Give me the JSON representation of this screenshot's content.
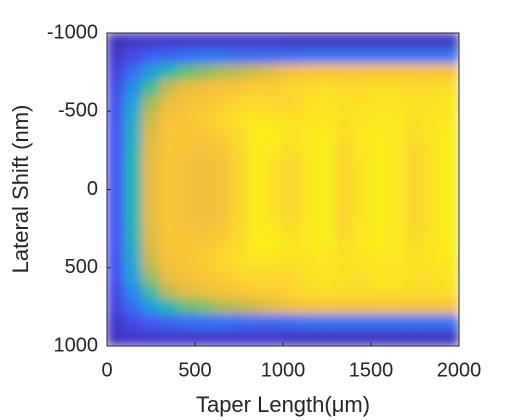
{
  "chart_data": {
    "type": "heatmap",
    "xlabel": "Taper Length(μm)",
    "ylabel": "Lateral Shift (nm)",
    "xlim": [
      0,
      2000
    ],
    "ylim": [
      1000,
      -1000
    ],
    "xticks": [
      0,
      500,
      1000,
      1500,
      2000
    ],
    "yticks": [
      -1000,
      -500,
      0,
      500,
      1000
    ],
    "zlim": [
      0,
      1
    ],
    "colormap": [
      "#3e26a8",
      "#4751f5",
      "#2c7ff5",
      "#17a3db",
      "#21b8b1",
      "#73bf70",
      "#d4ba45",
      "#fbc33b",
      "#f9fa14"
    ],
    "x": [
      50,
      150,
      250,
      350,
      450,
      550,
      650,
      750,
      850,
      950,
      1050,
      1150,
      1250,
      1350,
      1450,
      1550,
      1650,
      1750,
      1850,
      1950
    ],
    "y": [
      -950,
      -850,
      -750,
      -650,
      -550,
      -450,
      -350,
      -250,
      -150,
      -50,
      50,
      150,
      250,
      350,
      450,
      550,
      650,
      750,
      850,
      950
    ],
    "z": [
      [
        0.03,
        0.05,
        0.08,
        0.1,
        0.12,
        0.12,
        0.13,
        0.13,
        0.13,
        0.13,
        0.13,
        0.13,
        0.13,
        0.13,
        0.12,
        0.12,
        0.1,
        0.08,
        0.05,
        0.03
      ],
      [
        0.05,
        0.1,
        0.2,
        0.3,
        0.38,
        0.42,
        0.45,
        0.47,
        0.48,
        0.48,
        0.48,
        0.48,
        0.47,
        0.45,
        0.42,
        0.38,
        0.3,
        0.2,
        0.1,
        0.05
      ],
      [
        0.05,
        0.15,
        0.35,
        0.55,
        0.68,
        0.74,
        0.77,
        0.79,
        0.8,
        0.8,
        0.8,
        0.8,
        0.79,
        0.77,
        0.74,
        0.68,
        0.55,
        0.35,
        0.15,
        0.05
      ],
      [
        0.05,
        0.18,
        0.5,
        0.72,
        0.82,
        0.86,
        0.88,
        0.88,
        0.88,
        0.88,
        0.88,
        0.88,
        0.88,
        0.88,
        0.86,
        0.82,
        0.72,
        0.5,
        0.18,
        0.05
      ],
      [
        0.05,
        0.2,
        0.6,
        0.8,
        0.86,
        0.88,
        0.88,
        0.87,
        0.86,
        0.86,
        0.86,
        0.86,
        0.87,
        0.88,
        0.88,
        0.86,
        0.8,
        0.6,
        0.2,
        0.05
      ],
      [
        0.05,
        0.22,
        0.65,
        0.84,
        0.88,
        0.9,
        0.88,
        0.86,
        0.84,
        0.84,
        0.84,
        0.84,
        0.86,
        0.88,
        0.9,
        0.88,
        0.84,
        0.65,
        0.22,
        0.05
      ],
      [
        0.05,
        0.22,
        0.7,
        0.86,
        0.9,
        0.92,
        0.9,
        0.88,
        0.86,
        0.86,
        0.86,
        0.86,
        0.88,
        0.9,
        0.92,
        0.9,
        0.86,
        0.7,
        0.22,
        0.05
      ],
      [
        0.05,
        0.2,
        0.72,
        0.88,
        0.92,
        0.94,
        0.93,
        0.92,
        0.92,
        0.92,
        0.92,
        0.92,
        0.92,
        0.93,
        0.94,
        0.92,
        0.88,
        0.72,
        0.2,
        0.05
      ],
      [
        0.05,
        0.2,
        0.75,
        0.9,
        0.93,
        0.96,
        0.97,
        0.97,
        0.97,
        0.97,
        0.97,
        0.97,
        0.97,
        0.97,
        0.96,
        0.93,
        0.9,
        0.75,
        0.2,
        0.05
      ],
      [
        0.05,
        0.2,
        0.8,
        0.9,
        0.92,
        0.95,
        0.97,
        0.96,
        0.94,
        0.94,
        0.94,
        0.94,
        0.96,
        0.97,
        0.95,
        0.92,
        0.9,
        0.8,
        0.2,
        0.05
      ],
      [
        0.04,
        0.2,
        0.85,
        0.92,
        0.92,
        0.94,
        0.95,
        0.93,
        0.92,
        0.92,
        0.92,
        0.92,
        0.93,
        0.95,
        0.94,
        0.92,
        0.92,
        0.85,
        0.2,
        0.04
      ],
      [
        0.04,
        0.22,
        0.88,
        0.93,
        0.94,
        0.95,
        0.96,
        0.96,
        0.96,
        0.96,
        0.96,
        0.96,
        0.96,
        0.96,
        0.95,
        0.94,
        0.93,
        0.88,
        0.22,
        0.04
      ],
      [
        0.04,
        0.22,
        0.88,
        0.94,
        0.95,
        0.96,
        0.97,
        0.97,
        0.97,
        0.97,
        0.97,
        0.97,
        0.97,
        0.97,
        0.96,
        0.95,
        0.94,
        0.88,
        0.22,
        0.04
      ],
      [
        0.04,
        0.22,
        0.88,
        0.93,
        0.94,
        0.94,
        0.93,
        0.92,
        0.92,
        0.92,
        0.92,
        0.92,
        0.92,
        0.93,
        0.94,
        0.94,
        0.93,
        0.88,
        0.22,
        0.04
      ],
      [
        0.04,
        0.22,
        0.88,
        0.93,
        0.94,
        0.95,
        0.96,
        0.96,
        0.95,
        0.95,
        0.95,
        0.95,
        0.96,
        0.96,
        0.95,
        0.94,
        0.93,
        0.88,
        0.22,
        0.04
      ],
      [
        0.04,
        0.22,
        0.88,
        0.94,
        0.95,
        0.96,
        0.97,
        0.97,
        0.97,
        0.97,
        0.97,
        0.97,
        0.97,
        0.97,
        0.96,
        0.95,
        0.94,
        0.88,
        0.22,
        0.04
      ],
      [
        0.04,
        0.22,
        0.88,
        0.94,
        0.95,
        0.96,
        0.96,
        0.96,
        0.96,
        0.96,
        0.96,
        0.96,
        0.96,
        0.96,
        0.96,
        0.95,
        0.94,
        0.88,
        0.22,
        0.04
      ],
      [
        0.04,
        0.22,
        0.88,
        0.93,
        0.94,
        0.94,
        0.93,
        0.92,
        0.92,
        0.92,
        0.92,
        0.92,
        0.92,
        0.93,
        0.94,
        0.94,
        0.93,
        0.88,
        0.22,
        0.04
      ],
      [
        0.04,
        0.22,
        0.88,
        0.93,
        0.94,
        0.95,
        0.95,
        0.95,
        0.95,
        0.95,
        0.95,
        0.95,
        0.95,
        0.95,
        0.95,
        0.94,
        0.93,
        0.88,
        0.22,
        0.04
      ],
      [
        0.04,
        0.22,
        0.88,
        0.94,
        0.95,
        0.96,
        0.97,
        0.97,
        0.97,
        0.97,
        0.97,
        0.97,
        0.97,
        0.97,
        0.96,
        0.95,
        0.94,
        0.88,
        0.22,
        0.04
      ]
    ]
  }
}
